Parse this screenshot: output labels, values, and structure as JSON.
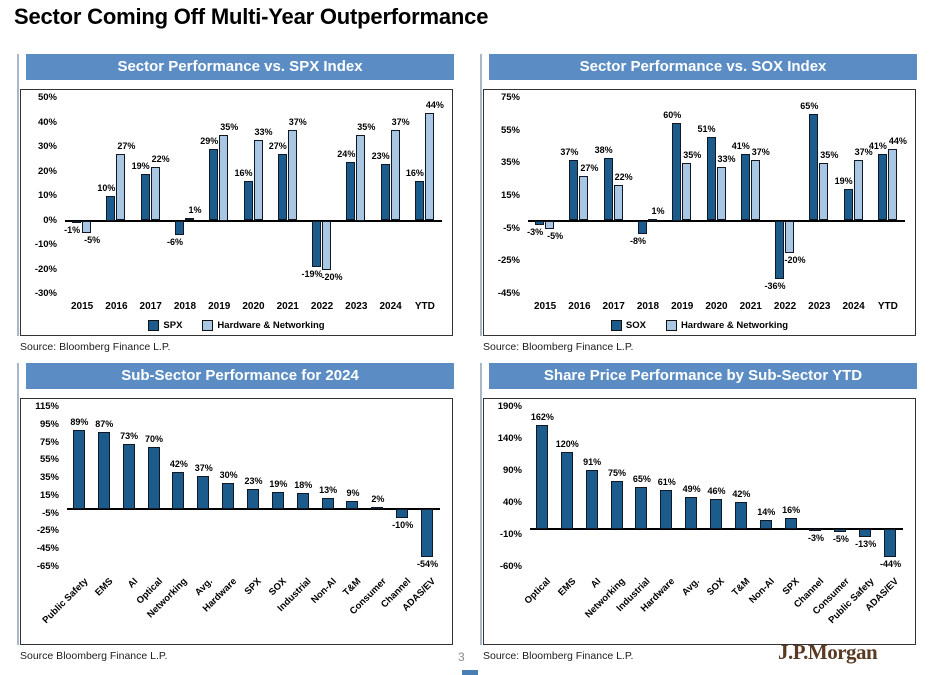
{
  "page": {
    "title": "Sector Coming Off Multi-Year Outperformance",
    "page_number": "3",
    "brand": "J.P.Morgan",
    "colors": {
      "header_bg": "#5b8dc4",
      "dark_bar": "#1b5c8c",
      "light_bar": "#a9c6e2"
    }
  },
  "chart_data": [
    {
      "type": "bar",
      "title": "Sector Performance vs. SPX Index",
      "source": "Source: Bloomberg Finance L.P.",
      "categories": [
        "2015",
        "2016",
        "2017",
        "2018",
        "2019",
        "2020",
        "2021",
        "2022",
        "2023",
        "2024",
        "YTD"
      ],
      "series": [
        {
          "name": "SPX",
          "color": "#1b5c8c",
          "values": [
            -1,
            10,
            19,
            -6,
            29,
            16,
            27,
            -19,
            24,
            23,
            16
          ]
        },
        {
          "name": "Hardware & Networking",
          "color": "#a9c6e2",
          "values": [
            -5,
            27,
            22,
            1,
            35,
            33,
            37,
            -20,
            35,
            37,
            44
          ]
        }
      ],
      "ylim": [
        -30,
        50
      ],
      "yticks": [
        50,
        40,
        30,
        20,
        10,
        0,
        -10,
        -20,
        -30
      ],
      "grid": false,
      "legend_position": "bottom"
    },
    {
      "type": "bar",
      "title": "Sector Performance vs. SOX Index",
      "source": "Source: Bloomberg Finance L.P.",
      "categories": [
        "2015",
        "2016",
        "2017",
        "2018",
        "2019",
        "2020",
        "2021",
        "2022",
        "2023",
        "2024",
        "YTD"
      ],
      "series": [
        {
          "name": "SOX",
          "color": "#1b5c8c",
          "values": [
            -3,
            37,
            38,
            -8,
            60,
            51,
            41,
            -36,
            65,
            19,
            41
          ]
        },
        {
          "name": "Hardware & Networking",
          "color": "#a9c6e2",
          "values": [
            -5,
            27,
            22,
            1,
            35,
            33,
            37,
            -20,
            35,
            37,
            44
          ]
        }
      ],
      "ylim": [
        -45,
        75
      ],
      "yticks": [
        75,
        55,
        35,
        15,
        -5,
        -25,
        -45
      ],
      "grid": false,
      "legend_position": "bottom"
    },
    {
      "type": "bar",
      "title": "Sub-Sector Performance for 2024",
      "source": "Source Bloomberg Finance L.P.",
      "categories": [
        "Public Safety",
        "EMS",
        "AI",
        "Optical",
        "Networking",
        "Avg.",
        "Hardware",
        "SPX",
        "SOX",
        "Industrial",
        "Non-AI",
        "T&M",
        "Consumer",
        "Channel",
        "ADAS/EV"
      ],
      "color": "#1b5c8c",
      "values": [
        89,
        87,
        73,
        70,
        42,
        37,
        30,
        23,
        19,
        18,
        13,
        9,
        2,
        -10,
        -54
      ],
      "ylim": [
        -65,
        115
      ],
      "yticks": [
        115,
        95,
        75,
        55,
        35,
        15,
        -5,
        -25,
        -45,
        -65
      ],
      "grid": false,
      "legend_position": "none"
    },
    {
      "type": "bar",
      "title": "Share Price Performance by Sub-Sector YTD",
      "source": "Source: Bloomberg Finance L.P.",
      "categories": [
        "Optical",
        "EMS",
        "AI",
        "Networking",
        "Industrial",
        "Hardware",
        "Avg.",
        "SOX",
        "T&M",
        "Non-AI",
        "SPX",
        "Channel",
        "Consumer",
        "Public Safety",
        "ADAS/EV"
      ],
      "color": "#1b5c8c",
      "values": [
        162,
        120,
        91,
        75,
        65,
        61,
        49,
        46,
        42,
        14,
        16,
        -3,
        -5,
        -13,
        -44
      ],
      "ylim": [
        -60,
        190
      ],
      "yticks": [
        190,
        140,
        90,
        40,
        -10,
        -60
      ],
      "grid": false,
      "legend_position": "none"
    }
  ]
}
